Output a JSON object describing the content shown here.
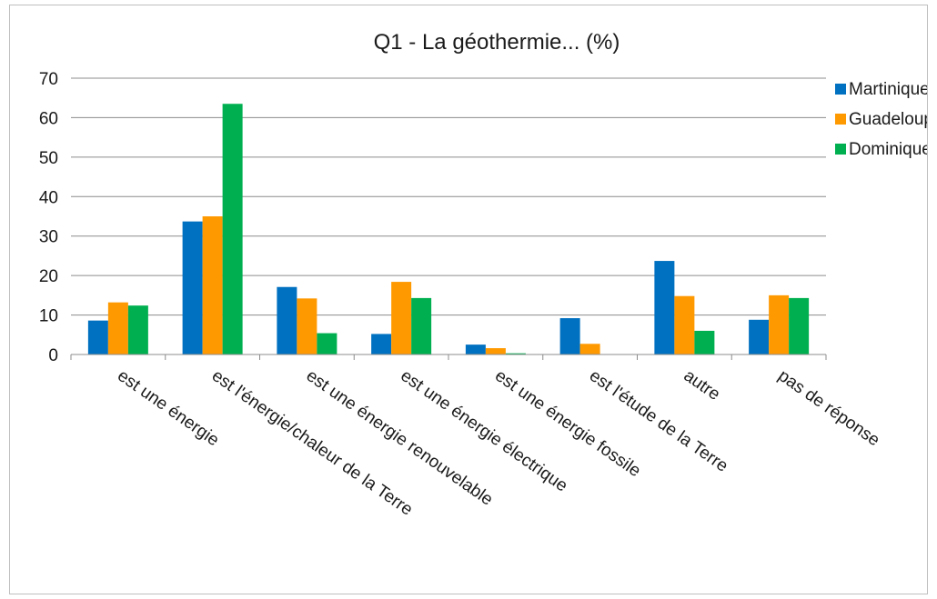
{
  "chart_data": {
    "type": "bar",
    "title": "Q1 - La géothermie... (%)",
    "xlabel": "",
    "ylabel": "",
    "ylim": [
      0,
      70
    ],
    "yticks": [
      "0",
      "10",
      "20",
      "30",
      "40",
      "50",
      "60",
      "70"
    ],
    "grid": true,
    "legend": "right",
    "categories": [
      "est une énergie",
      "est l'énergie/chaleur de la Terre",
      "est une énergie renouvelable",
      "est une énergie électrique",
      "est une énergie fossile",
      "est l'étude de la Terre",
      "autre",
      "pas de réponse"
    ],
    "series": [
      {
        "name": "Martinique",
        "color": "#0070c0",
        "values": [
          8.6,
          33.7,
          17.1,
          5.2,
          2.5,
          9.2,
          23.7,
          8.8
        ]
      },
      {
        "name": "Guadeloupe",
        "color": "#ff9900",
        "values": [
          13.2,
          35.0,
          14.2,
          18.4,
          1.6,
          2.7,
          14.8,
          15.0
        ]
      },
      {
        "name": "Dominique",
        "color": "#00b050",
        "values": [
          12.4,
          63.5,
          5.4,
          14.3,
          0.3,
          0.0,
          6.0,
          14.3
        ]
      }
    ]
  }
}
